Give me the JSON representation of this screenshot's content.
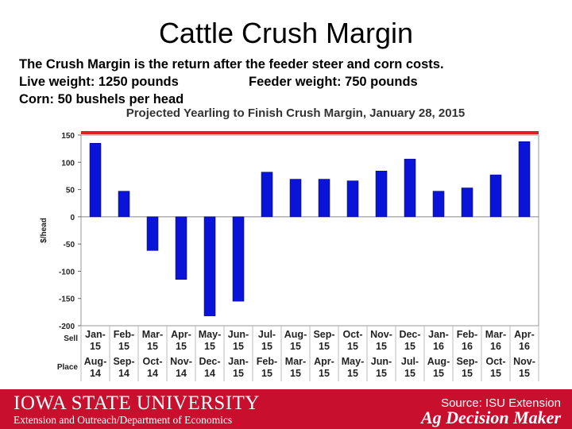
{
  "slide": {
    "title": "Cattle Crush Margin",
    "intro_line1": "The Crush Margin is the return after the feeder steer and corn costs.",
    "intro_line2a": "Live weight:  1250 pounds",
    "intro_line2b": "Feeder weight:  750 pounds",
    "intro_line3": "Corn:  50 bushels per head"
  },
  "footer": {
    "university": "Iowa State University",
    "department": "Extension and Outreach/Department of Economics",
    "source": "Source: ISU Extension",
    "brand": "Ag Decision Maker",
    "bg_color": "#c8102e"
  },
  "chart_data": {
    "type": "bar",
    "title": "Projected Yearling to Finish Crush Margin, January 28, 2015",
    "ylabel": "$/head",
    "ylim": [
      -200,
      150
    ],
    "yticks": [
      150,
      100,
      50,
      0,
      -50,
      -100,
      -150,
      -200
    ],
    "row_labels": [
      "Sell",
      "Place"
    ],
    "categories": [
      {
        "sell": [
          "Jan-",
          "15"
        ],
        "place": [
          "Aug-",
          "14"
        ]
      },
      {
        "sell": [
          "Feb-",
          "15"
        ],
        "place": [
          "Sep-",
          "14"
        ]
      },
      {
        "sell": [
          "Mar-",
          "15"
        ],
        "place": [
          "Oct-",
          "14"
        ]
      },
      {
        "sell": [
          "Apr-",
          "15"
        ],
        "place": [
          "Nov-",
          "14"
        ]
      },
      {
        "sell": [
          "May-",
          "15"
        ],
        "place": [
          "Dec-",
          "14"
        ]
      },
      {
        "sell": [
          "Jun-",
          "15"
        ],
        "place": [
          "Jan-",
          "15"
        ]
      },
      {
        "sell": [
          "Jul-",
          "15"
        ],
        "place": [
          "Feb-",
          "15"
        ]
      },
      {
        "sell": [
          "Aug-",
          "15"
        ],
        "place": [
          "Mar-",
          "15"
        ]
      },
      {
        "sell": [
          "Sep-",
          "15"
        ],
        "place": [
          "Apr-",
          "15"
        ]
      },
      {
        "sell": [
          "Oct-",
          "15"
        ],
        "place": [
          "May-",
          "15"
        ]
      },
      {
        "sell": [
          "Nov-",
          "15"
        ],
        "place": [
          "Jun-",
          "15"
        ]
      },
      {
        "sell": [
          "Dec-",
          "15"
        ],
        "place": [
          "Jul-",
          "15"
        ]
      },
      {
        "sell": [
          "Jan-",
          "16"
        ],
        "place": [
          "Aug-",
          "15"
        ]
      },
      {
        "sell": [
          "Feb-",
          "16"
        ],
        "place": [
          "Sep-",
          "15"
        ]
      },
      {
        "sell": [
          "Mar-",
          "16"
        ],
        "place": [
          "Oct-",
          "15"
        ]
      },
      {
        "sell": [
          "Apr-",
          "16"
        ],
        "place": [
          "Nov-",
          "15"
        ]
      }
    ],
    "values": [
      135,
      47,
      -62,
      -115,
      -182,
      -155,
      82,
      69,
      69,
      66,
      84,
      106,
      47,
      53,
      77,
      138
    ],
    "bar_color": "#0a14d8",
    "top_line_color": "#e02020",
    "grid": false
  }
}
